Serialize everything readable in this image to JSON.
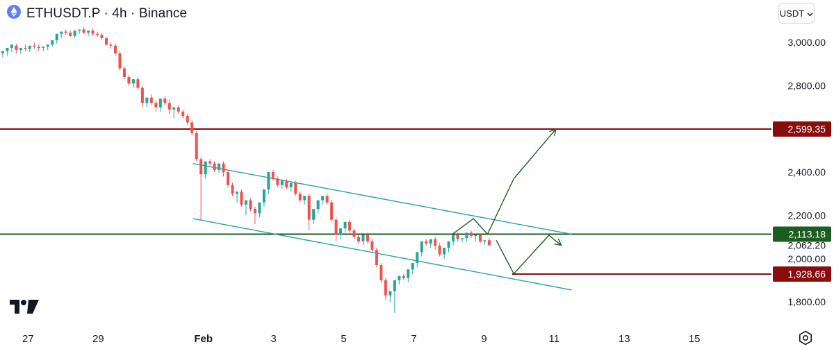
{
  "header": {
    "symbol_title": "ETHUSDT.P · 4h · Binance",
    "currency": "USDT"
  },
  "icons": {
    "ethereum": "ethereum-logo-icon",
    "dropdown": "chevron-down-icon",
    "settings": "gear-icon",
    "brand": "tradingview-logo-icon"
  },
  "colors": {
    "up": "#26a69a",
    "down": "#ef5350",
    "resistance": "#880e0e",
    "support_mid": "#1b5e20",
    "channel": "#26a0aa",
    "projection": "#1b5e20"
  },
  "chart_data": {
    "type": "candlestick",
    "title": "",
    "xlabel": "",
    "ylabel": "",
    "ylim": [
      1720,
      3100
    ],
    "y_ticks": [
      "3,000.00",
      "2,800.00",
      "2,400.00",
      "2,200.00",
      "2,000.00",
      "1,800.00"
    ],
    "y_tick_values": [
      3000,
      2800,
      2400,
      2200,
      2000,
      1800
    ],
    "x_ticks": [
      "27",
      "29",
      "Feb",
      "3",
      "5",
      "7",
      "9",
      "11",
      "13",
      "15"
    ],
    "x_tick_values": [
      -5,
      -3,
      0,
      2,
      4,
      6,
      8,
      10,
      12,
      14
    ],
    "xlim": [
      -5.8,
      15.8
    ],
    "price_labels": [
      {
        "text": "2,599.35",
        "value": 2599.35,
        "style": "resistance"
      },
      {
        "text": "2,113.18",
        "value": 2113.18,
        "style": "support_mid"
      },
      {
        "text": "2,062.20",
        "value": 2062.2,
        "style": "last"
      },
      {
        "text": "1,928.66",
        "value": 1928.66,
        "style": "resistance"
      }
    ],
    "horizontal_lines": [
      {
        "value": 2599.35,
        "style": "resistance"
      },
      {
        "value": 2113.18,
        "style": "support_mid"
      },
      {
        "value": 1928.66,
        "style": "resistance",
        "x_from": 8.8
      }
    ],
    "channel": {
      "upper": {
        "from": [
          -0.3,
          2440
        ],
        "to": [
          10.5,
          2113
        ]
      },
      "lower": {
        "from": [
          -0.3,
          2185
        ],
        "to": [
          10.5,
          1855
        ]
      }
    },
    "projection_paths": [
      {
        "points": [
          [
            7.1,
            2113
          ],
          [
            7.7,
            2185
          ],
          [
            8.1,
            2113
          ],
          [
            8.85,
            2370
          ],
          [
            10.05,
            2599
          ]
        ],
        "arrow": true
      },
      {
        "points": [
          [
            8.35,
            2085
          ],
          [
            8.85,
            1930
          ],
          [
            9.85,
            2108
          ],
          [
            10.2,
            2062
          ]
        ],
        "arrow": true
      }
    ],
    "candles": [
      [
        2940,
        2950,
        2905,
        2895
      ],
      [
        2950,
        2960,
        2940,
        2930
      ],
      [
        2960,
        2975,
        2950,
        2940
      ],
      [
        2975,
        2990,
        2960,
        2955
      ],
      [
        2985,
        2965,
        2995,
        2950
      ],
      [
        2965,
        2975,
        2950,
        2945
      ],
      [
        2975,
        2970,
        2990,
        2960
      ],
      [
        2970,
        2985,
        2960,
        2955
      ],
      [
        2985,
        2980,
        3000,
        2970
      ],
      [
        2980,
        2975,
        2990,
        2960
      ],
      [
        2975,
        2980,
        2965,
        2960
      ],
      [
        2980,
        2990,
        2970,
        2965
      ],
      [
        2990,
        3010,
        2985,
        2980
      ],
      [
        3010,
        3040,
        3000,
        2995
      ],
      [
        3040,
        3050,
        3030,
        3020
      ],
      [
        3050,
        3045,
        3060,
        3035
      ],
      [
        3045,
        3030,
        3055,
        3025
      ],
      [
        3030,
        3055,
        3025,
        3020
      ],
      [
        3055,
        3060,
        3045,
        3040
      ],
      [
        3060,
        3045,
        3070,
        3040
      ],
      [
        3045,
        3055,
        3040,
        3030
      ],
      [
        3055,
        3040,
        3065,
        3030
      ],
      [
        3040,
        3035,
        3050,
        3025
      ],
      [
        3035,
        3020,
        3045,
        3010
      ],
      [
        3020,
        2990,
        3025,
        2985
      ],
      [
        2990,
        2985,
        3000,
        2970
      ],
      [
        2985,
        2950,
        2995,
        2940
      ],
      [
        2950,
        2880,
        2960,
        2870
      ],
      [
        2880,
        2840,
        2890,
        2830
      ],
      [
        2840,
        2810,
        2850,
        2800
      ],
      [
        2810,
        2830,
        2800,
        2790
      ],
      [
        2830,
        2790,
        2840,
        2780
      ],
      [
        2790,
        2720,
        2800,
        2700
      ],
      [
        2720,
        2745,
        2710,
        2700
      ],
      [
        2745,
        2720,
        2760,
        2710
      ],
      [
        2720,
        2700,
        2730,
        2680
      ],
      [
        2700,
        2740,
        2690,
        2680
      ],
      [
        2740,
        2720,
        2750,
        2710
      ],
      [
        2720,
        2690,
        2735,
        2670
      ],
      [
        2690,
        2700,
        2680,
        2650
      ],
      [
        2700,
        2680,
        2710,
        2670
      ],
      [
        2680,
        2660,
        2690,
        2650
      ],
      [
        2660,
        2630,
        2670,
        2620
      ],
      [
        2630,
        2580,
        2640,
        2570
      ],
      [
        2580,
        2460,
        2590,
        2450
      ],
      [
        2460,
        2390,
        2470,
        2180
      ],
      [
        2390,
        2450,
        2380,
        2370
      ],
      [
        2450,
        2440,
        2460,
        2430
      ],
      [
        2440,
        2410,
        2450,
        2400
      ],
      [
        2410,
        2440,
        2400,
        2395
      ],
      [
        2440,
        2400,
        2450,
        2380
      ],
      [
        2400,
        2340,
        2410,
        2330
      ],
      [
        2340,
        2300,
        2350,
        2290
      ],
      [
        2300,
        2310,
        2290,
        2260
      ],
      [
        2310,
        2250,
        2320,
        2240
      ],
      [
        2250,
        2270,
        2240,
        2200
      ],
      [
        2270,
        2230,
        2280,
        2220
      ],
      [
        2230,
        2210,
        2240,
        2160
      ],
      [
        2210,
        2260,
        2200,
        2190
      ],
      [
        2260,
        2320,
        2250,
        2240
      ],
      [
        2320,
        2400,
        2310,
        2300
      ],
      [
        2400,
        2370,
        2410,
        2360
      ],
      [
        2370,
        2340,
        2380,
        2330
      ],
      [
        2340,
        2360,
        2330,
        2320
      ],
      [
        2360,
        2330,
        2370,
        2320
      ],
      [
        2330,
        2350,
        2320,
        2310
      ],
      [
        2350,
        2300,
        2360,
        2290
      ],
      [
        2300,
        2270,
        2310,
        2260
      ],
      [
        2270,
        2290,
        2260,
        2250
      ],
      [
        2290,
        2180,
        2300,
        2130
      ],
      [
        2180,
        2230,
        2170,
        2160
      ],
      [
        2230,
        2270,
        2220,
        2210
      ],
      [
        2270,
        2290,
        2260,
        2250
      ],
      [
        2290,
        2260,
        2300,
        2250
      ],
      [
        2260,
        2180,
        2270,
        2170
      ],
      [
        2180,
        2110,
        2190,
        2080
      ],
      [
        2110,
        2140,
        2100,
        2090
      ],
      [
        2140,
        2170,
        2130,
        2120
      ],
      [
        2170,
        2130,
        2180,
        2120
      ],
      [
        2130,
        2100,
        2140,
        2090
      ],
      [
        2100,
        2080,
        2110,
        2070
      ],
      [
        2080,
        2110,
        2070,
        2060
      ],
      [
        2110,
        2080,
        2120,
        2070
      ],
      [
        2080,
        2040,
        2090,
        2030
      ],
      [
        2040,
        1970,
        2050,
        1960
      ],
      [
        1970,
        1900,
        1980,
        1890
      ],
      [
        1900,
        1830,
        1910,
        1810
      ],
      [
        1830,
        1850,
        1820,
        1800
      ],
      [
        1850,
        1900,
        1840,
        1750
      ],
      [
        1900,
        1920,
        1890,
        1880
      ],
      [
        1920,
        1910,
        1930,
        1900
      ],
      [
        1910,
        1950,
        1900,
        1890
      ],
      [
        1950,
        1980,
        1940,
        1930
      ],
      [
        1980,
        2030,
        1970,
        1960
      ],
      [
        2030,
        2080,
        2020,
        2010
      ],
      [
        2080,
        2070,
        2090,
        2060
      ],
      [
        2070,
        2090,
        2060,
        2050
      ],
      [
        2090,
        2060,
        2100,
        2040
      ],
      [
        2060,
        2020,
        2070,
        2010
      ],
      [
        2020,
        2050,
        2010,
        2000
      ],
      [
        2050,
        2080,
        2040,
        2030
      ],
      [
        2080,
        2110,
        2070,
        2060
      ],
      [
        2110,
        2090,
        2120,
        2080
      ],
      [
        2090,
        2095,
        2080,
        2075
      ],
      [
        2095,
        2120,
        2085,
        2080
      ],
      [
        2120,
        2105,
        2130,
        2095
      ],
      [
        2105,
        2110,
        2095,
        2080
      ],
      [
        2110,
        2080,
        2115,
        2070
      ],
      [
        2080,
        2085,
        2075,
        2065
      ],
      [
        2085,
        2062,
        2095,
        2060
      ]
    ]
  }
}
